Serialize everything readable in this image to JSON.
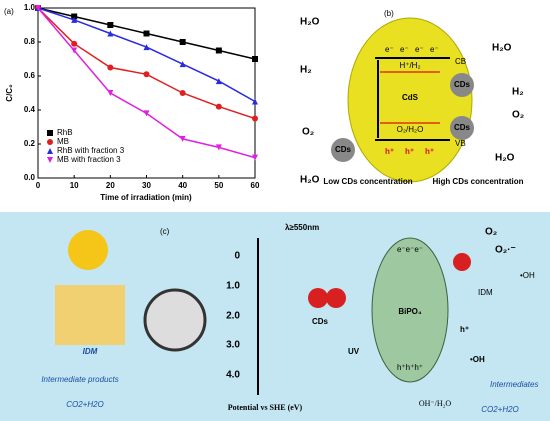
{
  "chart_data": {
    "type": "line",
    "panel": "(a)",
    "xlabel": "Time of irradiation (min)",
    "ylabel": "C/C₀",
    "x": [
      0,
      10,
      20,
      30,
      40,
      50,
      60
    ],
    "series": [
      {
        "name": "RhB",
        "color": "#000000",
        "marker": "square",
        "values": [
          1.0,
          0.95,
          0.9,
          0.85,
          0.8,
          0.75,
          0.7
        ]
      },
      {
        "name": "MB",
        "color": "#e02020",
        "marker": "circle",
        "values": [
          1.0,
          0.79,
          0.65,
          0.61,
          0.5,
          0.42,
          0.35
        ]
      },
      {
        "name": "RhB with fraction 3",
        "color": "#2a2ae0",
        "marker": "triangle-up",
        "values": [
          1.0,
          0.93,
          0.85,
          0.77,
          0.67,
          0.57,
          0.45
        ]
      },
      {
        "name": "MB with fraction 3",
        "color": "#e020e0",
        "marker": "triangle-down",
        "values": [
          1.0,
          0.75,
          0.5,
          0.38,
          0.23,
          0.18,
          0.12
        ]
      }
    ],
    "xlim": [
      0,
      60
    ],
    "xticks": [
      0,
      10,
      20,
      30,
      40,
      50,
      60
    ],
    "ylim": [
      0,
      1
    ],
    "yticks": [
      {
        "value": 0,
        "label": "0.0"
      },
      0.2,
      0.4,
      0.6,
      0.8,
      {
        "value": 1,
        "label": "1.0"
      }
    ],
    "legend": "lower-left"
  },
  "diagram_b": {
    "panel": "(b)",
    "center": "CdS",
    "cb": "CB",
    "vb": "VB",
    "h_level": "H⁺/H₂",
    "o_level": "O₂/H₂O",
    "electrons": [
      "e⁻",
      "e⁻",
      "e⁻",
      "e⁻"
    ],
    "holes": [
      "h⁺",
      "h⁺",
      "h⁺"
    ],
    "cds": [
      "CDs",
      "CDs",
      "CDs"
    ],
    "left_top": [
      "H₂O",
      "H₂"
    ],
    "left_bottom": [
      "O₂",
      "H₂O"
    ],
    "right_top": [
      "H₂O",
      "H₂"
    ],
    "right_bottom": [
      "O₂",
      "H₂O"
    ],
    "low": "Low CDs concentration",
    "high": "High CDs concentration"
  },
  "diagram_c": {
    "panel": "(c)",
    "idm": "IDM",
    "intermediate_products": "Intermediate products",
    "co2_left": "CO2+H2O",
    "light": "λ≥550nm",
    "scale": [
      "0",
      "1.0",
      "2.0",
      "3.0",
      "4.0"
    ],
    "scale_label": "Potential vs SHE (eV)",
    "cds": "CDs",
    "uv": "UV",
    "bipo4": "BiPO₄",
    "electrons": "e⁻e⁻e⁻",
    "holes": "h⁺h⁺h⁺",
    "oh": "OH⁻/H₂O",
    "o2": "O₂",
    "superoxide": "O₂·⁻",
    "oh_radical_top": "•OH",
    "idm_right": "IDM",
    "h_plus": "h⁺",
    "oh_radical": "•OH",
    "intermediates": "Intermediates",
    "co2_right": "CO2+H2O"
  }
}
